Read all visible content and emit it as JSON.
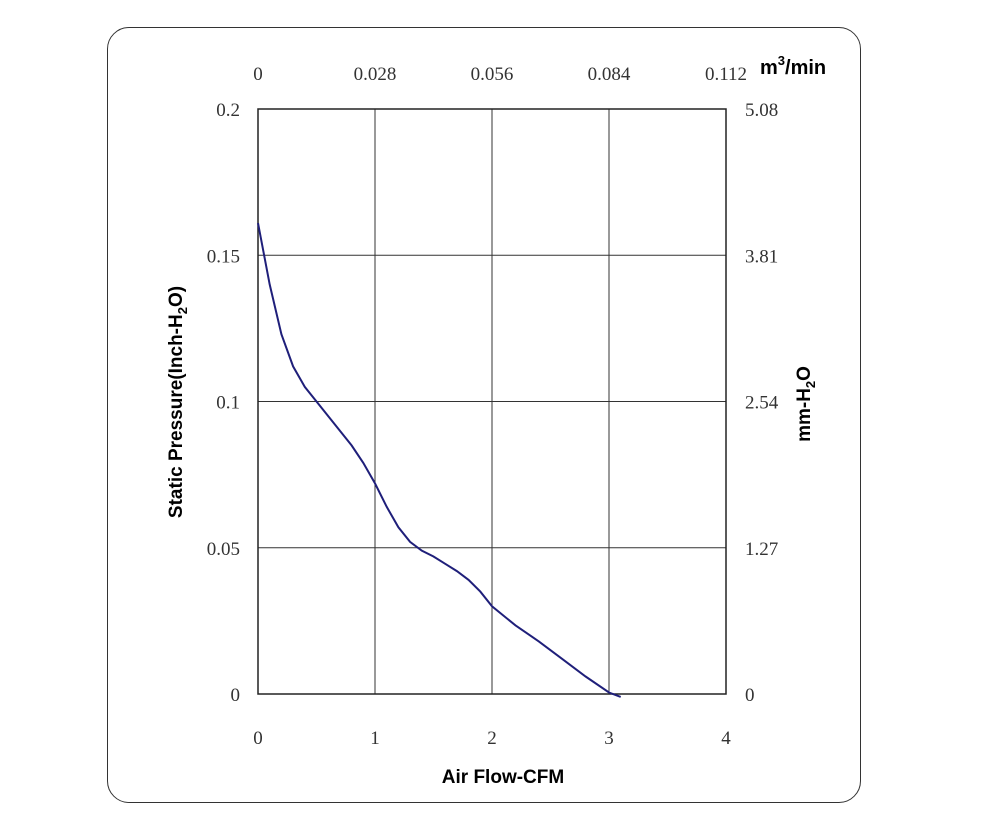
{
  "chart_data": {
    "type": "line",
    "title": "",
    "xlabel": "Air Flow-CFM",
    "ylabel": {
      "before": "Static Pressure(Inch-H",
      "sub": "2",
      "after": "O)"
    },
    "x2label": {
      "before": "m",
      "sup": "3",
      "after": "/min"
    },
    "y2label": {
      "before": "mm-H",
      "sub": "2",
      "after": "O"
    },
    "xlim": [
      0,
      4
    ],
    "ylim": [
      0,
      0.2
    ],
    "x_ticks": [
      "0",
      "1",
      "2",
      "3",
      "4"
    ],
    "y_ticks": [
      "0",
      "0.05",
      "0.1",
      "0.15",
      "0.2"
    ],
    "x2_ticks": [
      "0",
      "0.028",
      "0.056",
      "0.084",
      "0.112"
    ],
    "y2_ticks": [
      "0",
      "1.27",
      "2.54",
      "3.81",
      "5.08"
    ],
    "grid": true,
    "line_color": "#1f1f7a",
    "series": [
      {
        "x": [
          0,
          0.1,
          0.2,
          0.3,
          0.4,
          0.5,
          0.6,
          0.7,
          0.8,
          0.9,
          1.0,
          1.1,
          1.2,
          1.3,
          1.4,
          1.5,
          1.6,
          1.7,
          1.8,
          1.9,
          2.0,
          2.2,
          2.4,
          2.6,
          2.8,
          3.0,
          3.1
        ],
        "y": [
          0.161,
          0.14,
          0.123,
          0.112,
          0.105,
          0.1,
          0.095,
          0.09,
          0.085,
          0.079,
          0.072,
          0.064,
          0.057,
          0.052,
          0.049,
          0.047,
          0.0445,
          0.042,
          0.039,
          0.035,
          0.03,
          0.0235,
          0.018,
          0.012,
          0.006,
          0.0005,
          -0.001
        ]
      }
    ]
  }
}
